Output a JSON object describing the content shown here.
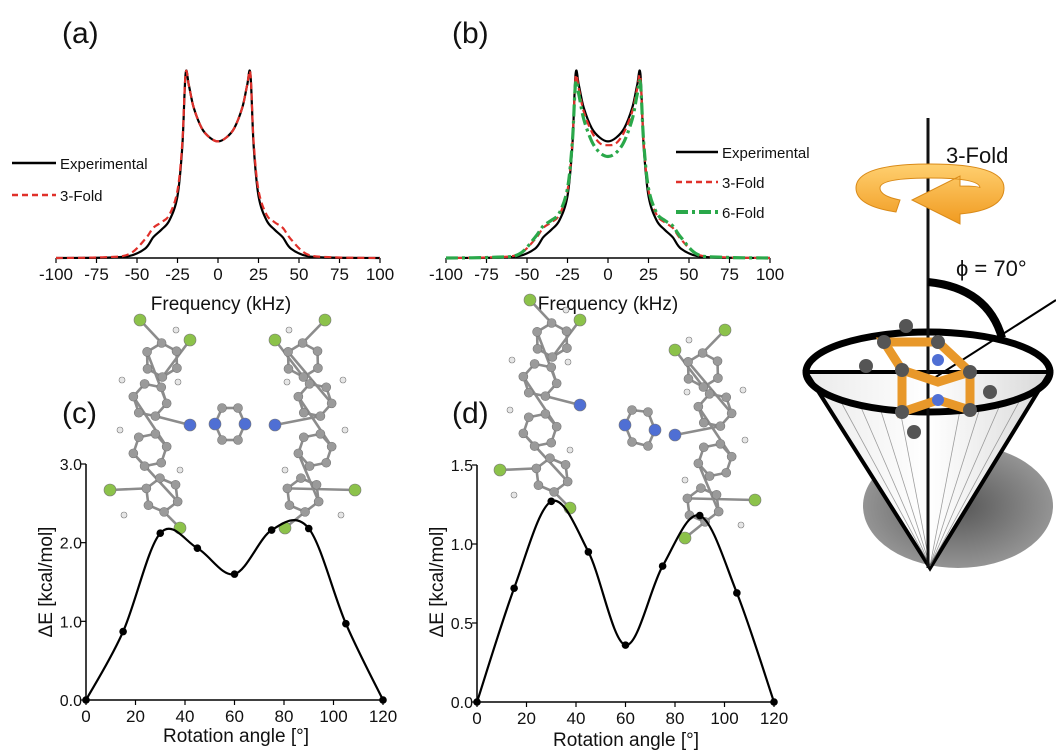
{
  "chart_data": [
    {
      "panel": "(a)",
      "type": "line",
      "xlabel": "Frequency (kHz)",
      "xlim": [
        -100,
        100
      ],
      "xticks": [
        -100,
        -75,
        -50,
        -25,
        0,
        25,
        50,
        75,
        100
      ],
      "legend_placement": "left",
      "series": [
        {
          "name": "Experimental",
          "color": "#000000",
          "style": "solid",
          "x": [
            -100,
            -70,
            -55,
            -45,
            -40,
            -35,
            -30,
            -25,
            -22,
            -20,
            -18,
            -15,
            -10,
            -5,
            0,
            5,
            10,
            15,
            18,
            20,
            22,
            25,
            30,
            35,
            40,
            45,
            55,
            70,
            100
          ],
          "y": [
            0,
            0.002,
            0.01,
            0.05,
            0.11,
            0.15,
            0.2,
            0.33,
            0.6,
            0.98,
            0.92,
            0.8,
            0.69,
            0.64,
            0.62,
            0.64,
            0.69,
            0.8,
            0.92,
            0.98,
            0.6,
            0.33,
            0.2,
            0.15,
            0.11,
            0.05,
            0.01,
            0.002,
            0
          ]
        },
        {
          "name": "3-Fold",
          "color": "#e0302a",
          "style": "dashed",
          "x": [
            -100,
            -70,
            -55,
            -45,
            -40,
            -35,
            -30,
            -25,
            -22,
            -20,
            -18,
            -15,
            -10,
            -5,
            0,
            5,
            10,
            15,
            18,
            20,
            22,
            25,
            30,
            35,
            40,
            45,
            55,
            70,
            100
          ],
          "y": [
            0,
            0.004,
            0.02,
            0.1,
            0.16,
            0.19,
            0.23,
            0.36,
            0.62,
            0.98,
            0.92,
            0.8,
            0.69,
            0.64,
            0.62,
            0.64,
            0.69,
            0.8,
            0.92,
            0.98,
            0.62,
            0.36,
            0.23,
            0.19,
            0.16,
            0.1,
            0.02,
            0.004,
            0
          ]
        }
      ]
    },
    {
      "panel": "(b)",
      "type": "line",
      "xlabel": "Frequency (kHz)",
      "xlim": [
        -100,
        100
      ],
      "xticks": [
        -100,
        -75,
        -50,
        -25,
        0,
        25,
        50,
        75,
        100
      ],
      "legend_placement": "right",
      "series": [
        {
          "name": "Experimental",
          "color": "#000000",
          "style": "solid",
          "x": [
            -100,
            -70,
            -55,
            -45,
            -40,
            -35,
            -30,
            -25,
            -22,
            -20,
            -18,
            -15,
            -10,
            -5,
            0,
            5,
            10,
            15,
            18,
            20,
            22,
            25,
            30,
            35,
            40,
            45,
            55,
            70,
            100
          ],
          "y": [
            0,
            0.002,
            0.01,
            0.05,
            0.11,
            0.15,
            0.2,
            0.33,
            0.6,
            0.98,
            0.92,
            0.8,
            0.69,
            0.64,
            0.62,
            0.64,
            0.69,
            0.8,
            0.92,
            0.98,
            0.6,
            0.33,
            0.2,
            0.15,
            0.11,
            0.05,
            0.01,
            0.002,
            0
          ]
        },
        {
          "name": "3-Fold",
          "color": "#e0302a",
          "style": "dashed",
          "x": [
            -100,
            -70,
            -55,
            -45,
            -40,
            -35,
            -30,
            -25,
            -22,
            -20,
            -18,
            -15,
            -10,
            -5,
            0,
            5,
            10,
            15,
            18,
            20,
            22,
            25,
            30,
            35,
            40,
            45,
            55,
            70,
            100
          ],
          "y": [
            0,
            0.004,
            0.02,
            0.1,
            0.16,
            0.19,
            0.23,
            0.36,
            0.62,
            0.96,
            0.9,
            0.78,
            0.67,
            0.61,
            0.6,
            0.61,
            0.67,
            0.78,
            0.9,
            0.96,
            0.62,
            0.36,
            0.23,
            0.19,
            0.16,
            0.1,
            0.02,
            0.004,
            0
          ]
        },
        {
          "name": "6-Fold",
          "color": "#2aa84a",
          "style": "dashdot",
          "x": [
            -100,
            -70,
            -55,
            -45,
            -40,
            -35,
            -30,
            -25,
            -22,
            -20,
            -18,
            -15,
            -10,
            -5,
            0,
            5,
            10,
            15,
            18,
            20,
            22,
            25,
            30,
            35,
            40,
            45,
            55,
            70,
            100
          ],
          "y": [
            0,
            0.004,
            0.02,
            0.11,
            0.17,
            0.2,
            0.24,
            0.37,
            0.62,
            0.93,
            0.87,
            0.74,
            0.62,
            0.56,
            0.54,
            0.56,
            0.62,
            0.74,
            0.87,
            0.93,
            0.62,
            0.37,
            0.24,
            0.2,
            0.17,
            0.11,
            0.02,
            0.004,
            0
          ]
        }
      ]
    },
    {
      "panel": "(c)",
      "type": "line",
      "xlabel": "Rotation angle [°]",
      "ylabel": "ΔE [kcal/mol]",
      "xlim": [
        0,
        120
      ],
      "ylim": [
        0,
        3.0
      ],
      "xticks": [
        0,
        20,
        40,
        60,
        80,
        100,
        120
      ],
      "yticks": [
        0.0,
        1.0,
        2.0,
        3.0
      ],
      "ytick_labels": [
        "0.0",
        "1.0",
        "2.0",
        "3.0"
      ],
      "series": [
        {
          "name": "",
          "color": "#000000",
          "x": [
            0,
            15,
            30,
            45,
            60,
            75,
            90,
            105,
            120
          ],
          "y": [
            0.0,
            0.87,
            2.12,
            1.93,
            1.6,
            2.16,
            2.18,
            0.97,
            0.0
          ]
        }
      ]
    },
    {
      "panel": "(d)",
      "type": "line",
      "xlabel": "Rotation angle [°]",
      "ylabel": "ΔE [kcal/mol]",
      "xlim": [
        0,
        120
      ],
      "ylim": [
        0,
        1.5
      ],
      "xticks": [
        0,
        20,
        40,
        60,
        80,
        100,
        120
      ],
      "yticks": [
        0.0,
        0.5,
        1.0,
        1.5
      ],
      "ytick_labels": [
        "0.0",
        "0.5",
        "1.0",
        "1.5"
      ],
      "series": [
        {
          "name": "",
          "color": "#000000",
          "x": [
            0,
            15,
            30,
            45,
            60,
            75,
            90,
            105,
            120
          ],
          "y": [
            0.0,
            0.72,
            1.27,
            0.95,
            0.36,
            0.86,
            1.18,
            0.69,
            0.0
          ]
        }
      ]
    }
  ],
  "illustration": {
    "axis_label": "3-Fold",
    "angle_label": "ϕ = 70°"
  },
  "colors": {
    "atom_carbon": "#9a9a9a",
    "atom_hydrogen": "#e6e6e6",
    "atom_nitrogen": "#4f6fd4",
    "atom_fluorine": "#8cc24a",
    "ring_orange": "#f0a030"
  }
}
